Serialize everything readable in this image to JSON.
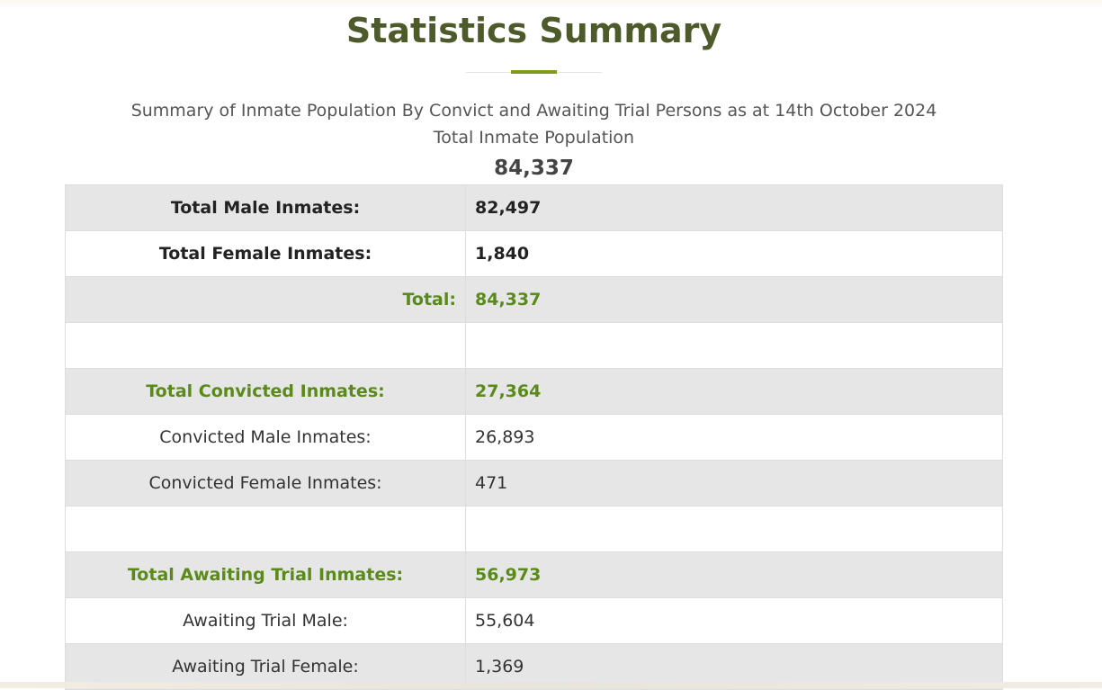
{
  "heading": {
    "title": "Statistics Summary"
  },
  "summary": {
    "subtitle": "Summary of Inmate Population By Convict and Awaiting Trial Persons as at 14th October 2024",
    "population_label": "Total Inmate Population",
    "population_value": "84,337"
  },
  "colors": {
    "title": "#4d5b2b",
    "accent": "#7f9a1f",
    "highlight_text": "#5a8a1a",
    "shaded_row": "#e6e6e6"
  },
  "table": {
    "rows": [
      {
        "label": "Total Male Inmates:",
        "value": "82,497"
      },
      {
        "label": "Total Female Inmates:",
        "value": "1,840"
      },
      {
        "label": "Total:",
        "value": "84,337"
      },
      {
        "label": "",
        "value": ""
      },
      {
        "label": "Total Convicted Inmates:",
        "value": "27,364"
      },
      {
        "label": "Convicted Male Inmates:",
        "value": "26,893"
      },
      {
        "label": "Convicted Female Inmates:",
        "value": "471"
      },
      {
        "label": "",
        "value": ""
      },
      {
        "label": "Total Awaiting Trial Inmates:",
        "value": "56,973"
      },
      {
        "label": "Awaiting Trial Male:",
        "value": "55,604"
      },
      {
        "label": "Awaiting Trial Female:",
        "value": "1,369"
      }
    ]
  }
}
